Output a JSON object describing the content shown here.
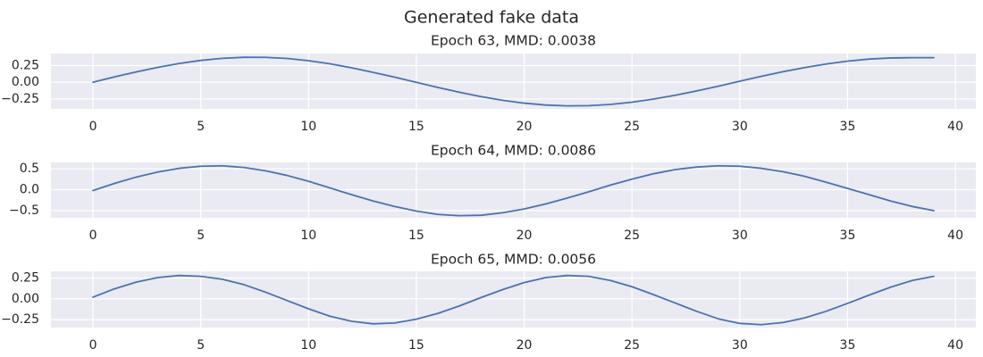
{
  "figure": {
    "title": "Generated fake data"
  },
  "colors": {
    "series": "#4c72b0",
    "background": "#eaeaf2",
    "grid": "#ffffff"
  },
  "chart_data": [
    {
      "type": "line",
      "title": "Epoch 63, MMD: 0.0038",
      "xlabel": "",
      "ylabel": "",
      "grid": true,
      "xlim": [
        -1.95,
        40.95
      ],
      "ylim": [
        -0.4,
        0.43
      ],
      "xticks": [
        0,
        5,
        10,
        15,
        20,
        25,
        30,
        35,
        40
      ],
      "yticks": [
        0.25,
        0.0,
        -0.25
      ],
      "yticklabels": [
        "0.25",
        "0.00",
        "−0.25"
      ],
      "series": [
        {
          "x": [
            0,
            1,
            2,
            3,
            4,
            5,
            6,
            7,
            8,
            9,
            10,
            11,
            12,
            13,
            14,
            15,
            16,
            17,
            18,
            19,
            20,
            21,
            22,
            23,
            24,
            25,
            26,
            27,
            28,
            29,
            30,
            31,
            32,
            33,
            34,
            35,
            36,
            37,
            38,
            39
          ],
          "values": [
            0.0,
            0.08,
            0.154,
            0.222,
            0.281,
            0.327,
            0.358,
            0.374,
            0.373,
            0.356,
            0.323,
            0.276,
            0.216,
            0.148,
            0.075,
            -0.002,
            -0.078,
            -0.151,
            -0.216,
            -0.271,
            -0.314,
            -0.342,
            -0.355,
            -0.352,
            -0.333,
            -0.3,
            -0.253,
            -0.196,
            -0.131,
            -0.06,
            0.015,
            0.088,
            0.157,
            0.219,
            0.273,
            0.316,
            0.347,
            0.364,
            0.368,
            0.368
          ]
        }
      ]
    },
    {
      "type": "line",
      "title": "Epoch 64, MMD: 0.0086",
      "xlabel": "",
      "ylabel": "",
      "grid": true,
      "xlim": [
        -1.95,
        40.95
      ],
      "ylim": [
        -0.67,
        0.65
      ],
      "xticks": [
        0,
        5,
        10,
        15,
        20,
        25,
        30,
        35,
        40
      ],
      "yticks": [
        0.5,
        0.0,
        -0.5
      ],
      "yticklabels": [
        "0.5",
        "0.0",
        "−0.5"
      ],
      "series": [
        {
          "x": [
            0,
            1,
            2,
            3,
            4,
            5,
            6,
            7,
            8,
            9,
            10,
            11,
            12,
            13,
            14,
            15,
            16,
            17,
            18,
            19,
            20,
            21,
            22,
            23,
            24,
            25,
            26,
            27,
            28,
            29,
            30,
            31,
            32,
            33,
            34,
            35,
            36,
            37,
            38,
            39
          ],
          "values": [
            -0.02,
            0.15,
            0.3,
            0.42,
            0.51,
            0.56,
            0.57,
            0.53,
            0.45,
            0.34,
            0.2,
            0.04,
            -0.12,
            -0.27,
            -0.4,
            -0.51,
            -0.59,
            -0.62,
            -0.61,
            -0.55,
            -0.46,
            -0.34,
            -0.2,
            -0.05,
            0.11,
            0.25,
            0.38,
            0.48,
            0.54,
            0.57,
            0.56,
            0.51,
            0.43,
            0.32,
            0.18,
            0.03,
            -0.12,
            -0.27,
            -0.4,
            -0.5
          ]
        }
      ]
    },
    {
      "type": "line",
      "title": "Epoch 65, MMD: 0.0056",
      "xlabel": "",
      "ylabel": "",
      "grid": true,
      "xlim": [
        -1.95,
        40.95
      ],
      "ylim": [
        -0.345,
        0.33
      ],
      "xticks": [
        0,
        5,
        10,
        15,
        20,
        25,
        30,
        35,
        40
      ],
      "yticks": [
        0.25,
        0.0,
        -0.25
      ],
      "yticklabels": [
        "0.25",
        "0.00",
        "−0.25"
      ],
      "series": [
        {
          "x": [
            0,
            1,
            2,
            3,
            4,
            5,
            6,
            7,
            8,
            9,
            10,
            11,
            12,
            13,
            14,
            15,
            16,
            17,
            18,
            19,
            20,
            21,
            22,
            23,
            24,
            25,
            26,
            27,
            28,
            29,
            30,
            31,
            32,
            33,
            34,
            35,
            36,
            37,
            38,
            39
          ],
          "values": [
            0.02,
            0.12,
            0.2,
            0.255,
            0.28,
            0.27,
            0.235,
            0.17,
            0.08,
            -0.02,
            -0.12,
            -0.21,
            -0.27,
            -0.3,
            -0.29,
            -0.245,
            -0.175,
            -0.085,
            0.015,
            0.11,
            0.195,
            0.255,
            0.28,
            0.27,
            0.22,
            0.145,
            0.05,
            -0.05,
            -0.15,
            -0.24,
            -0.295,
            -0.31,
            -0.285,
            -0.23,
            -0.15,
            -0.055,
            0.045,
            0.14,
            0.22,
            0.27
          ]
        }
      ]
    }
  ]
}
